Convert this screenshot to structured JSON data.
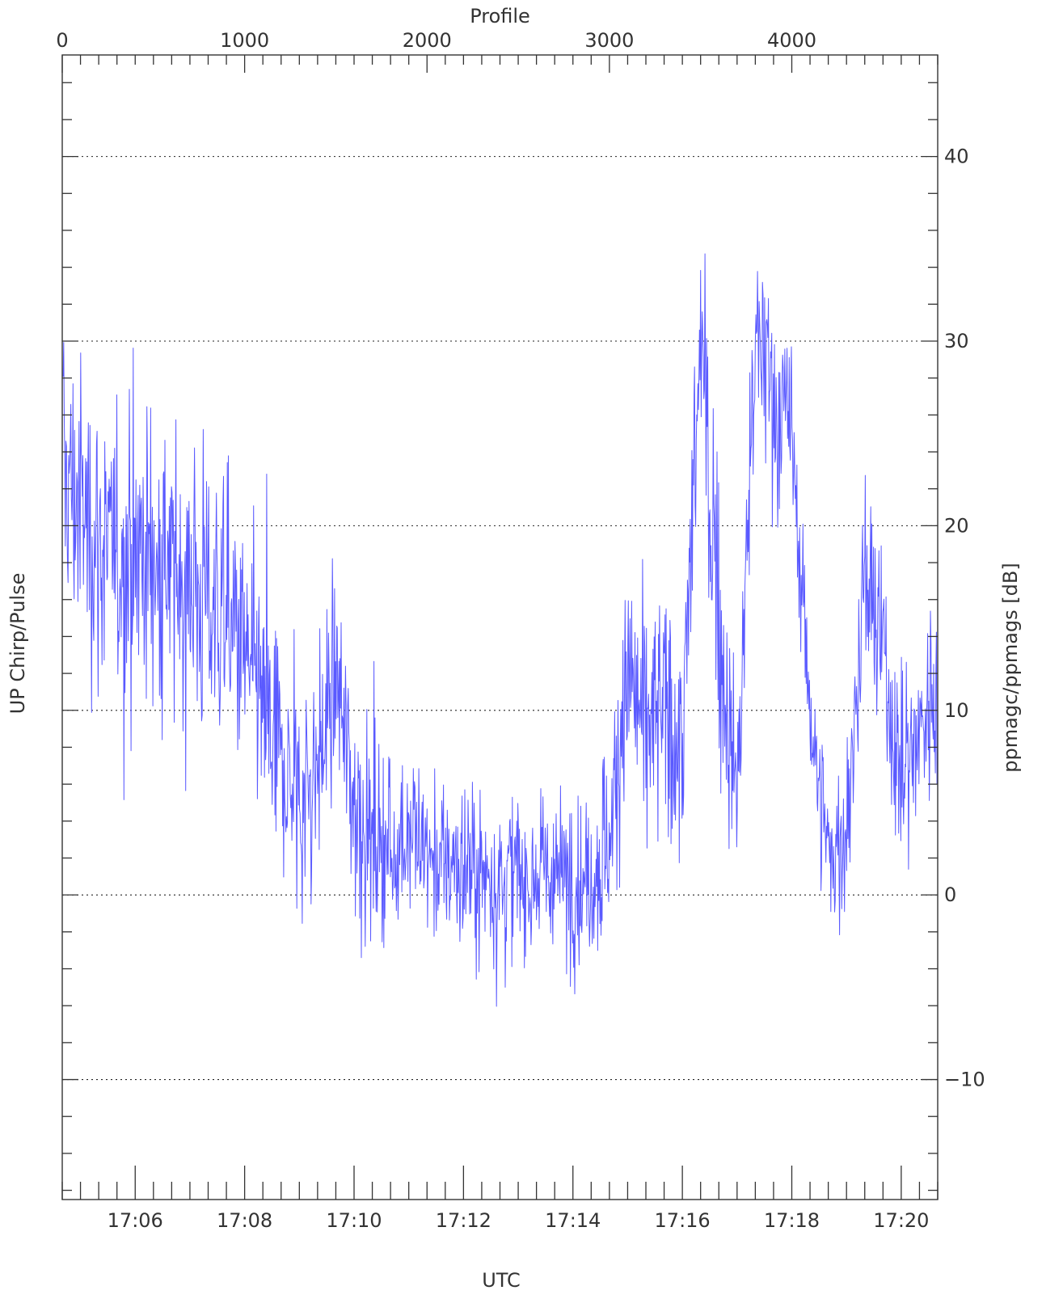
{
  "chart_data": {
    "type": "line",
    "title": "",
    "top_axis": {
      "label": "Profile",
      "range": [
        0,
        4800
      ],
      "ticks": [
        0,
        1000,
        2000,
        3000,
        4000
      ],
      "tick_labels": [
        "0",
        "1000",
        "2000",
        "3000",
        "4000"
      ]
    },
    "bottom_axis": {
      "label": "UTC",
      "range": [
        "17:04:40",
        "17:20:40"
      ],
      "ticks": [
        "17:06",
        "17:08",
        "17:10",
        "17:12",
        "17:14",
        "17:16",
        "17:18",
        "17:20"
      ],
      "tick_labels": [
        "17:06",
        "17:08",
        "17:10",
        "17:12",
        "17:14",
        "17:16",
        "17:18",
        "17:20"
      ]
    },
    "left_axis": {
      "label": "UP Chirp/Pulse"
    },
    "right_axis": {
      "label": "ppmagc/ppmags [dB]",
      "range": [
        -16.5,
        45.5
      ],
      "ticks": [
        -10,
        0,
        10,
        20,
        30,
        40
      ],
      "tick_labels": [
        "−10",
        "0",
        "10",
        "20",
        "30",
        "40"
      ]
    },
    "grid": {
      "horizontal": true,
      "style": "dotted",
      "at": [
        -10,
        0,
        10,
        20,
        30,
        40
      ]
    },
    "series": [
      {
        "color": "#5a5aff",
        "profile_samples": [
          0,
          100,
          200,
          300,
          400,
          500,
          600,
          700,
          800,
          900,
          1000,
          1100,
          1200,
          1300,
          1400,
          1500,
          1600,
          1700,
          1800,
          1900,
          2000,
          2100,
          2200,
          2300,
          2400,
          2500,
          2600,
          2700,
          2800,
          2900,
          3000,
          3100,
          3200,
          3300,
          3400,
          3500,
          3600,
          3700,
          3800,
          3900,
          4000,
          4100,
          4200,
          4300,
          4400,
          4500,
          4600,
          4700,
          4800
        ],
        "level_db": [
          23,
          21,
          19,
          18,
          19,
          18,
          17,
          17,
          16,
          15,
          13,
          10,
          7,
          5,
          7,
          12,
          5,
          3,
          2,
          4,
          2,
          1.5,
          1.5,
          1,
          1,
          1,
          1,
          1,
          1,
          1,
          3,
          12,
          9,
          10,
          8,
          30,
          14,
          5,
          30,
          27,
          25,
          10,
          2,
          3,
          17,
          13,
          6,
          9,
          11
        ],
        "spread_db": [
          10,
          10,
          10,
          10,
          10,
          10,
          10,
          10,
          10,
          9,
          9,
          8,
          8,
          8,
          8,
          8,
          8,
          7,
          7,
          7,
          6,
          6,
          6,
          6,
          6,
          6,
          6,
          6,
          6,
          6,
          7,
          8,
          8,
          8,
          9,
          8,
          8,
          7,
          8,
          8,
          6,
          5,
          6,
          6,
          7,
          7,
          7,
          6,
          6
        ],
        "y_min": -14,
        "y_max": 42.5
      }
    ]
  }
}
